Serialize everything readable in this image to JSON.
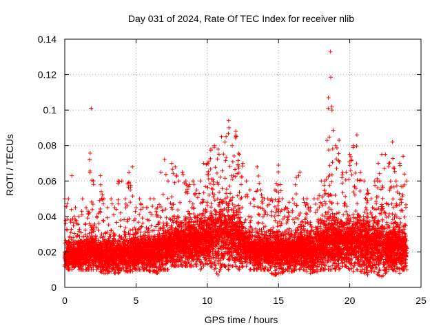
{
  "chart_data": {
    "type": "scatter",
    "title": "Day 031 of 2024, Rate Of TEC Index for receiver nlib",
    "xlabel": "GPS time / hours",
    "ylabel": "ROTI / TECUs",
    "xlim": [
      0,
      25
    ],
    "ylim": [
      0,
      0.14
    ],
    "xticks": [
      0,
      5,
      10,
      15,
      20,
      25
    ],
    "xtick_labels": [
      "0",
      "5",
      "10",
      "15",
      "20",
      "25"
    ],
    "yticks": [
      0,
      0.02,
      0.04,
      0.06,
      0.08,
      0.1,
      0.12,
      0.14
    ],
    "ytick_labels": [
      "0",
      "0.02",
      "0.04",
      "0.06",
      "0.08",
      "0.1",
      "0.12",
      "0.14"
    ],
    "grid": true,
    "marker": "plus",
    "color": "#ff0000",
    "x_data_range": [
      0,
      24
    ],
    "series": [
      {
        "name": "ROTI",
        "x": [
          0.0,
          0.25,
          0.5,
          0.75,
          1.0,
          1.25,
          1.5,
          1.75,
          1.85,
          2.0,
          2.25,
          2.5,
          2.75,
          3.0,
          3.25,
          3.5,
          3.75,
          4.0,
          4.25,
          4.5,
          4.75,
          5.0,
          5.25,
          5.5,
          5.75,
          6.0,
          6.25,
          6.5,
          6.75,
          7.0,
          7.25,
          7.5,
          7.75,
          8.0,
          8.25,
          8.5,
          8.75,
          9.0,
          9.25,
          9.5,
          9.75,
          10.0,
          10.25,
          10.5,
          10.75,
          11.0,
          11.25,
          11.5,
          11.75,
          12.0,
          12.25,
          12.5,
          12.75,
          13.0,
          13.25,
          13.5,
          13.75,
          14.0,
          14.25,
          14.5,
          14.75,
          15.0,
          15.25,
          15.5,
          15.75,
          16.0,
          16.25,
          16.5,
          16.75,
          17.0,
          17.25,
          17.5,
          17.75,
          18.0,
          18.25,
          18.5,
          18.65,
          18.75,
          19.0,
          19.25,
          19.5,
          19.75,
          20.0,
          20.25,
          20.5,
          20.75,
          21.0,
          21.25,
          21.5,
          21.75,
          22.0,
          22.25,
          22.5,
          22.75,
          23.0,
          23.25,
          23.5,
          23.75,
          24.0
        ],
        "upper": [
          0.05,
          0.05,
          0.063,
          0.045,
          0.04,
          0.05,
          0.045,
          0.072,
          0.101,
          0.06,
          0.04,
          0.063,
          0.05,
          0.045,
          0.05,
          0.045,
          0.06,
          0.06,
          0.05,
          0.065,
          0.068,
          0.045,
          0.05,
          0.045,
          0.045,
          0.05,
          0.05,
          0.045,
          0.065,
          0.072,
          0.06,
          0.07,
          0.068,
          0.06,
          0.065,
          0.06,
          0.058,
          0.06,
          0.055,
          0.06,
          0.07,
          0.07,
          0.078,
          0.08,
          0.078,
          0.085,
          0.082,
          0.094,
          0.08,
          0.088,
          0.075,
          0.07,
          0.06,
          0.055,
          0.05,
          0.068,
          0.055,
          0.05,
          0.05,
          0.05,
          0.055,
          0.069,
          0.05,
          0.045,
          0.048,
          0.05,
          0.062,
          0.065,
          0.05,
          0.05,
          0.045,
          0.05,
          0.05,
          0.06,
          0.06,
          0.107,
          0.133,
          0.1,
          0.08,
          0.083,
          0.065,
          0.065,
          0.075,
          0.08,
          0.086,
          0.065,
          0.06,
          0.055,
          0.05,
          0.06,
          0.07,
          0.075,
          0.075,
          0.07,
          0.082,
          0.06,
          0.07,
          0.074,
          0.06
        ],
        "lower": [
          0.012,
          0.01,
          0.01,
          0.012,
          0.01,
          0.01,
          0.01,
          0.01,
          0.01,
          0.01,
          0.01,
          0.009,
          0.008,
          0.008,
          0.009,
          0.008,
          0.008,
          0.01,
          0.009,
          0.009,
          0.009,
          0.01,
          0.01,
          0.01,
          0.01,
          0.009,
          0.009,
          0.008,
          0.01,
          0.01,
          0.01,
          0.012,
          0.012,
          0.012,
          0.012,
          0.012,
          0.012,
          0.012,
          0.012,
          0.01,
          0.012,
          0.013,
          0.012,
          0.01,
          0.007,
          0.012,
          0.012,
          0.01,
          0.012,
          0.012,
          0.01,
          0.012,
          0.012,
          0.01,
          0.01,
          0.01,
          0.01,
          0.01,
          0.01,
          0.008,
          0.007,
          0.008,
          0.008,
          0.01,
          0.009,
          0.009,
          0.01,
          0.01,
          0.01,
          0.009,
          0.008,
          0.009,
          0.009,
          0.01,
          0.01,
          0.01,
          0.01,
          0.01,
          0.01,
          0.01,
          0.012,
          0.012,
          0.01,
          0.009,
          0.01,
          0.009,
          0.008,
          0.007,
          0.009,
          0.009,
          0.007,
          0.006,
          0.008,
          0.01,
          0.01,
          0.009,
          0.008,
          0.01,
          0.01
        ],
        "dense_center": [
          0.017,
          0.018,
          0.018,
          0.018,
          0.018,
          0.019,
          0.02,
          0.02,
          0.021,
          0.02,
          0.018,
          0.019,
          0.018,
          0.017,
          0.018,
          0.018,
          0.018,
          0.018,
          0.019,
          0.019,
          0.02,
          0.02,
          0.02,
          0.019,
          0.019,
          0.019,
          0.019,
          0.019,
          0.021,
          0.022,
          0.022,
          0.024,
          0.025,
          0.026,
          0.025,
          0.025,
          0.025,
          0.025,
          0.025,
          0.025,
          0.026,
          0.027,
          0.027,
          0.028,
          0.029,
          0.03,
          0.03,
          0.03,
          0.03,
          0.028,
          0.026,
          0.025,
          0.022,
          0.021,
          0.02,
          0.021,
          0.02,
          0.02,
          0.02,
          0.02,
          0.02,
          0.021,
          0.02,
          0.02,
          0.02,
          0.02,
          0.021,
          0.022,
          0.021,
          0.02,
          0.02,
          0.02,
          0.021,
          0.023,
          0.024,
          0.025,
          0.025,
          0.025,
          0.025,
          0.025,
          0.025,
          0.025,
          0.025,
          0.025,
          0.026,
          0.025,
          0.024,
          0.023,
          0.023,
          0.023,
          0.024,
          0.024,
          0.023,
          0.022,
          0.022,
          0.022,
          0.022,
          0.022,
          0.021
        ]
      }
    ]
  }
}
